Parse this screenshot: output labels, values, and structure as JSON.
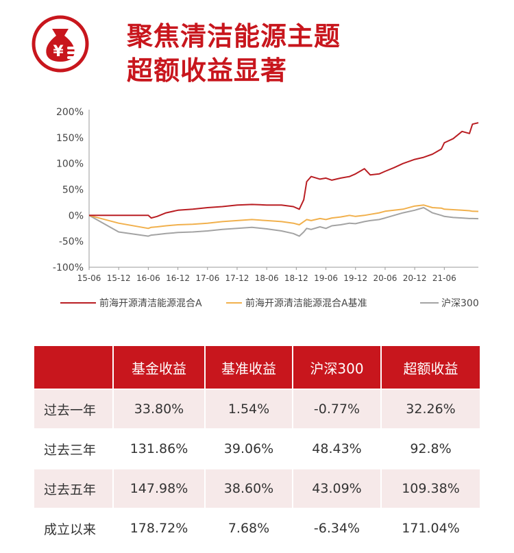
{
  "header": {
    "title_line1": "聚焦清洁能源主题",
    "title_line2": "超额收益显著",
    "logo_text": "¥"
  },
  "colors": {
    "brand_red": "#c8161d",
    "fund_line": "#b91d22",
    "benchmark_line": "#f1b04c",
    "index_line": "#a3a3a3"
  },
  "chart_data": {
    "type": "line",
    "title": "",
    "xlabel": "",
    "ylabel": "",
    "ylim": [
      -100,
      200
    ],
    "yticks": [
      "200%",
      "150%",
      "100%",
      "50%",
      "0%",
      "-50%",
      "-100%"
    ],
    "ytick_values": [
      200,
      150,
      100,
      50,
      0,
      -50,
      -100
    ],
    "xticks": [
      "15-06",
      "15-12",
      "16-06",
      "16-12",
      "17-06",
      "17-12",
      "18-06",
      "18-12",
      "19-06",
      "19-12",
      "20-06",
      "20-12",
      "21-06"
    ],
    "x": [
      0,
      1,
      2,
      2.1,
      2.3,
      2.6,
      3,
      3.5,
      4,
      4.5,
      5,
      5.5,
      6,
      6.5,
      6.9,
      7.1,
      7.25,
      7.35,
      7.5,
      7.8,
      8,
      8.2,
      8.5,
      8.8,
      9,
      9.3,
      9.5,
      9.8,
      10,
      10.3,
      10.6,
      11,
      11.3,
      11.6,
      11.9,
      12,
      12.3,
      12.6,
      12.85,
      12.95,
      13.15
    ],
    "series": [
      {
        "name": "前海开源清洁能源混合A",
        "color": "#b91d22",
        "values": [
          0,
          0,
          0,
          -5,
          -2,
          5,
          10,
          12,
          15,
          17,
          20,
          21,
          20,
          20,
          17,
          12,
          30,
          65,
          75,
          70,
          72,
          68,
          72,
          75,
          80,
          90,
          78,
          80,
          85,
          92,
          100,
          108,
          112,
          118,
          128,
          140,
          148,
          162,
          158,
          176,
          178.72
        ]
      },
      {
        "name": "前海开源清洁能源混合A基准",
        "color": "#f1b04c",
        "values": [
          0,
          -15,
          -25,
          -23,
          -22,
          -20,
          -18,
          -17,
          -15,
          -12,
          -10,
          -8,
          -10,
          -12,
          -15,
          -18,
          -12,
          -8,
          -10,
          -6,
          -8,
          -5,
          -3,
          0,
          -2,
          0,
          2,
          5,
          8,
          10,
          12,
          18,
          20,
          15,
          14,
          12,
          11,
          10,
          9,
          8,
          7.68
        ]
      },
      {
        "name": "沪深300",
        "color": "#a3a3a3",
        "values": [
          0,
          -32,
          -40,
          -38,
          -37,
          -35,
          -33,
          -32,
          -30,
          -27,
          -25,
          -23,
          -26,
          -30,
          -35,
          -40,
          -32,
          -25,
          -27,
          -22,
          -25,
          -20,
          -18,
          -15,
          -16,
          -12,
          -10,
          -8,
          -5,
          0,
          5,
          10,
          15,
          5,
          0,
          -2,
          -4,
          -5,
          -6,
          -6,
          -6.34
        ]
      }
    ],
    "legend_placement": "bottom"
  },
  "table": {
    "headers": [
      "",
      "基金收益",
      "基准收益",
      "沪深300",
      "超额收益"
    ],
    "rows": [
      [
        "过去一年",
        "33.80%",
        "1.54%",
        "-0.77%",
        "32.26%"
      ],
      [
        "过去三年",
        "131.86%",
        "39.06%",
        "48.43%",
        "92.8%"
      ],
      [
        "过去五年",
        "147.98%",
        "38.60%",
        "43.09%",
        "109.38%"
      ],
      [
        "成立以来",
        "178.72%",
        "7.68%",
        "-6.34%",
        "171.04%"
      ]
    ]
  }
}
